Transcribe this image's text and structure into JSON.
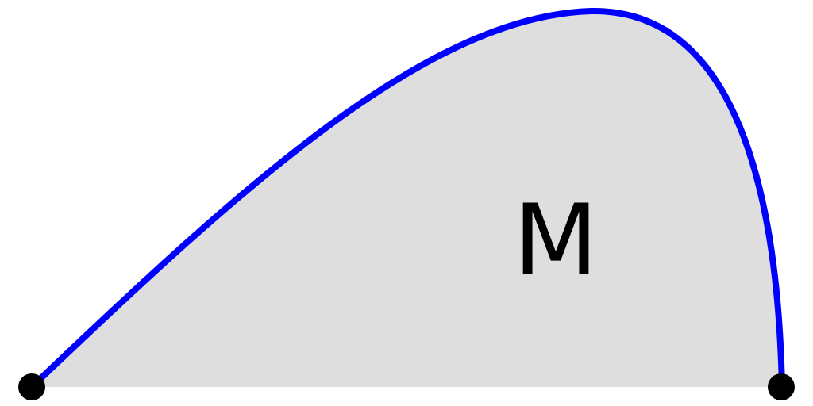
{
  "diagram": {
    "region_label": "M",
    "colors": {
      "fill": "#dedede",
      "curve": "#0000ff",
      "points": "#000000",
      "label": "#000000",
      "background": "#ffffff"
    },
    "shapes": {
      "region": "filled-region",
      "boundary": "curved-boundary",
      "endpoints": [
        "left-endpoint",
        "right-endpoint"
      ]
    }
  }
}
